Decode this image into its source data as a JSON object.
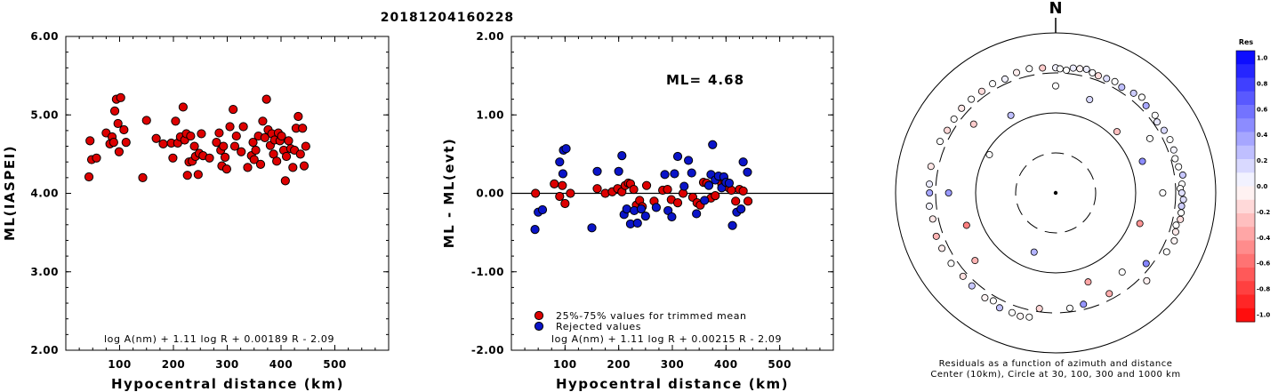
{
  "title": "20181204160228",
  "chart_data": [
    {
      "type": "scatter",
      "id": "ml-vs-distance",
      "ylabel": "ML(IASPEI)",
      "xlabel": "Hypocentral distance (km)",
      "xlim": [
        0,
        600
      ],
      "ylim": [
        2.0,
        6.0
      ],
      "xticks": [
        "100",
        "200",
        "300",
        "400",
        "500"
      ],
      "yticks": [
        "2.00",
        "3.00",
        "4.00",
        "5.00",
        "6.00"
      ],
      "formula": "log A(nm) + 1.11 log R + 0.00189 R - 2.09",
      "series": [
        {
          "color": "#dd0000",
          "points": [
            [
              43,
              4.21
            ],
            [
              45,
              4.67
            ],
            [
              48,
              4.43
            ],
            [
              57,
              4.45
            ],
            [
              75,
              4.77
            ],
            [
              82,
              4.63
            ],
            [
              86,
              4.72
            ],
            [
              89,
              4.65
            ],
            [
              91,
              5.05
            ],
            [
              94,
              5.2
            ],
            [
              97,
              4.89
            ],
            [
              99,
              4.53
            ],
            [
              102,
              5.22
            ],
            [
              108,
              4.81
            ],
            [
              112,
              4.65
            ],
            [
              143,
              4.2
            ],
            [
              150,
              4.93
            ],
            [
              168,
              4.7
            ],
            [
              181,
              4.63
            ],
            [
              196,
              4.64
            ],
            [
              199,
              4.45
            ],
            [
              204,
              4.92
            ],
            [
              208,
              4.64
            ],
            [
              213,
              4.72
            ],
            [
              218,
              5.1
            ],
            [
              221,
              4.68
            ],
            [
              224,
              4.76
            ],
            [
              226,
              4.23
            ],
            [
              229,
              4.4
            ],
            [
              232,
              4.73
            ],
            [
              235,
              4.41
            ],
            [
              239,
              4.6
            ],
            [
              241,
              4.47
            ],
            [
              246,
              4.24
            ],
            [
              248,
              4.51
            ],
            [
              252,
              4.76
            ],
            [
              255,
              4.48
            ],
            [
              267,
              4.45
            ],
            [
              280,
              4.65
            ],
            [
              285,
              4.77
            ],
            [
              288,
              4.55
            ],
            [
              290,
              4.35
            ],
            [
              293,
              4.6
            ],
            [
              296,
              4.46
            ],
            [
              299,
              4.31
            ],
            [
              305,
              4.85
            ],
            [
              311,
              5.07
            ],
            [
              314,
              4.6
            ],
            [
              317,
              4.73
            ],
            [
              326,
              4.53
            ],
            [
              330,
              4.85
            ],
            [
              338,
              4.33
            ],
            [
              345,
              4.48
            ],
            [
              348,
              4.65
            ],
            [
              350,
              4.43
            ],
            [
              353,
              4.55
            ],
            [
              358,
              4.73
            ],
            [
              362,
              4.37
            ],
            [
              366,
              4.92
            ],
            [
              370,
              4.71
            ],
            [
              373,
              5.2
            ],
            [
              376,
              4.81
            ],
            [
              380,
              4.61
            ],
            [
              383,
              4.76
            ],
            [
              386,
              4.5
            ],
            [
              388,
              4.68
            ],
            [
              392,
              4.41
            ],
            [
              395,
              4.77
            ],
            [
              398,
              4.67
            ],
            [
              401,
              4.73
            ],
            [
              405,
              4.55
            ],
            [
              408,
              4.16
            ],
            [
              410,
              4.47
            ],
            [
              414,
              4.67
            ],
            [
              418,
              4.57
            ],
            [
              422,
              4.33
            ],
            [
              425,
              4.55
            ],
            [
              428,
              4.83
            ],
            [
              432,
              4.98
            ],
            [
              436,
              4.5
            ],
            [
              440,
              4.83
            ],
            [
              443,
              4.35
            ],
            [
              446,
              4.6
            ]
          ]
        }
      ]
    },
    {
      "type": "scatter",
      "id": "residual-vs-distance",
      "ylabel": "ML - ML(evt)",
      "xlabel": "Hypocentral distance (km)",
      "xlim": [
        0,
        600
      ],
      "ylim": [
        -2.0,
        2.0
      ],
      "xticks": [
        "100",
        "200",
        "300",
        "400",
        "500"
      ],
      "yticks": [
        "-2.00",
        "-1.00",
        "0.00",
        "1.00",
        "2.00"
      ],
      "ml_label": "ML=",
      "ml_value": "4.68",
      "formula": "log A(nm) + 1.11 log R + 0.00215 R - 2.09",
      "legend": [
        {
          "label": "25%-75% values for trimmed mean",
          "color": "#dd0000"
        },
        {
          "label": "Rejected values",
          "color": "#0a14c8"
        }
      ],
      "series": [
        {
          "name": "25%-75% values for trimmed mean",
          "color": "#dd0000",
          "points": [
            [
              45,
              0.0
            ],
            [
              80,
              0.12
            ],
            [
              90,
              -0.04
            ],
            [
              95,
              0.1
            ],
            [
              100,
              -0.13
            ],
            [
              110,
              0.0
            ],
            [
              160,
              0.06
            ],
            [
              175,
              0.0
            ],
            [
              188,
              0.02
            ],
            [
              198,
              0.06
            ],
            [
              206,
              0.02
            ],
            [
              212,
              0.1
            ],
            [
              218,
              0.13
            ],
            [
              222,
              0.12
            ],
            [
              228,
              0.05
            ],
            [
              233,
              -0.15
            ],
            [
              239,
              -0.09
            ],
            [
              244,
              -0.17
            ],
            [
              252,
              0.1
            ],
            [
              266,
              -0.1
            ],
            [
              282,
              0.04
            ],
            [
              291,
              0.05
            ],
            [
              298,
              -0.08
            ],
            [
              310,
              -0.12
            ],
            [
              320,
              0.0
            ],
            [
              338,
              -0.05
            ],
            [
              346,
              -0.12
            ],
            [
              352,
              -0.15
            ],
            [
              358,
              0.14
            ],
            [
              364,
              0.13
            ],
            [
              372,
              -0.06
            ],
            [
              380,
              -0.03
            ],
            [
              392,
              0.12
            ],
            [
              398,
              0.15
            ],
            [
              405,
              0.07
            ],
            [
              410,
              0.04
            ],
            [
              418,
              -0.1
            ],
            [
              425,
              0.05
            ],
            [
              432,
              0.03
            ],
            [
              441,
              -0.1
            ]
          ]
        },
        {
          "name": "Rejected values",
          "color": "#0a14c8",
          "points": [
            [
              44,
              -0.46
            ],
            [
              50,
              -0.24
            ],
            [
              58,
              -0.21
            ],
            [
              90,
              0.4
            ],
            [
              97,
              0.55
            ],
            [
              102,
              0.57
            ],
            [
              96,
              0.25
            ],
            [
              150,
              -0.44
            ],
            [
              160,
              0.28
            ],
            [
              200,
              0.28
            ],
            [
              206,
              0.48
            ],
            [
              210,
              -0.27
            ],
            [
              215,
              -0.2
            ],
            [
              222,
              -0.39
            ],
            [
              229,
              -0.22
            ],
            [
              235,
              -0.38
            ],
            [
              242,
              -0.2
            ],
            [
              250,
              -0.29
            ],
            [
              270,
              -0.18
            ],
            [
              286,
              0.24
            ],
            [
              292,
              -0.22
            ],
            [
              299,
              -0.3
            ],
            [
              304,
              0.25
            ],
            [
              310,
              0.47
            ],
            [
              322,
              0.09
            ],
            [
              330,
              0.42
            ],
            [
              336,
              0.26
            ],
            [
              345,
              -0.26
            ],
            [
              360,
              -0.09
            ],
            [
              368,
              0.1
            ],
            [
              372,
              0.24
            ],
            [
              375,
              0.62
            ],
            [
              380,
              0.17
            ],
            [
              386,
              0.22
            ],
            [
              392,
              0.07
            ],
            [
              396,
              0.21
            ],
            [
              400,
              0.14
            ],
            [
              406,
              0.13
            ],
            [
              412,
              -0.41
            ],
            [
              420,
              -0.24
            ],
            [
              428,
              -0.2
            ],
            [
              432,
              0.4
            ],
            [
              440,
              0.27
            ]
          ]
        }
      ]
    },
    {
      "type": "polar-scatter",
      "id": "azimuth-residuals",
      "north_label": "N",
      "caption_line1": "Residuals as a function of azimuth and distance",
      "caption_line2": "Center (10km), Circle at 30, 100, 300 and 1000 km",
      "rings_km": [
        30,
        100,
        300,
        1000
      ],
      "colorbar_title": "Res",
      "colorbar_ticks": [
        "1.0",
        "0.8",
        "0.6",
        "0.4",
        "0.2",
        "0.0",
        "-0.2",
        "-0.4",
        "-0.6",
        "-0.8",
        "-1.0"
      ],
      "points_azimuth_distance_residual": [
        [
          0,
          350,
          0.06
        ],
        [
          2,
          340,
          0.0
        ],
        [
          5,
          330,
          0.0
        ],
        [
          8,
          360,
          0.08
        ],
        [
          11,
          365,
          -0.05
        ],
        [
          14,
          375,
          0.07
        ],
        [
          17,
          355,
          0.02
        ],
        [
          20,
          345,
          -0.14
        ],
        [
          24,
          350,
          0.13
        ],
        [
          28,
          360,
          0.0
        ],
        [
          32,
          345,
          0.25
        ],
        [
          38,
          365,
          0.2
        ],
        [
          42,
          390,
          0.0
        ],
        [
          46,
          355,
          0.34
        ],
        [
          52,
          360,
          0.0
        ],
        [
          55,
          335,
          0.09
        ],
        [
          60,
          350,
          0.15
        ],
        [
          65,
          360,
          0.0
        ],
        [
          70,
          355,
          0.04
        ],
        [
          74,
          340,
          0.0
        ],
        [
          78,
          355,
          0.0
        ],
        [
          82,
          385,
          0.22
        ],
        [
          86,
          365,
          0.0
        ],
        [
          88,
          345,
          0.0
        ],
        [
          90,
          360,
          0.12
        ],
        [
          93,
          380,
          0.13
        ],
        [
          96,
          365,
          0.2
        ],
        [
          99,
          370,
          0.0
        ],
        [
          102,
          375,
          -0.12
        ],
        [
          105,
          345,
          0.0
        ],
        [
          108,
          360,
          -0.08
        ],
        [
          112,
          380,
          -0.04
        ],
        [
          118,
          355,
          0.0
        ],
        [
          128,
          260,
          0.48
        ],
        [
          134,
          365,
          -0.06
        ],
        [
          152,
          255,
          -0.32
        ],
        [
          166,
          260,
          0.41
        ],
        [
          173,
          270,
          0.0
        ],
        [
          188,
          275,
          -0.16
        ],
        [
          192,
          370,
          0.0
        ],
        [
          196,
          385,
          -0.03
        ],
        [
          200,
          375,
          0.0
        ],
        [
          206,
          380,
          0.24
        ],
        [
          210,
          345,
          0.0
        ],
        [
          214,
          365,
          -0.05
        ],
        [
          222,
          350,
          0.21
        ],
        [
          228,
          345,
          -0.12
        ],
        [
          236,
          360,
          0.0
        ],
        [
          244,
          365,
          -0.07
        ],
        [
          250,
          370,
          -0.3
        ],
        [
          258,
          355,
          -0.09
        ],
        [
          264,
          370,
          0.05
        ],
        [
          270,
          360,
          0.35
        ],
        [
          274,
          365,
          0.08
        ],
        [
          282,
          375,
          -0.1
        ],
        [
          294,
          365,
          0.0
        ],
        [
          300,
          350,
          -0.15
        ],
        [
          306,
          355,
          0.0
        ],
        [
          312,
          365,
          -0.1
        ],
        [
          318,
          360,
          0.0
        ],
        [
          324,
          355,
          -0.14
        ],
        [
          330,
          360,
          0.0
        ],
        [
          336,
          345,
          0.06
        ],
        [
          342,
          365,
          -0.07
        ],
        [
          348,
          370,
          0.0
        ],
        [
          354,
          355,
          -0.2
        ],
        [
          110,
          130,
          -0.42
        ],
        [
          200,
          60,
          0.3
        ],
        [
          300,
          90,
          0.0
        ],
        [
          45,
          120,
          -0.25
        ],
        [
          70,
          140,
          0.45
        ],
        [
          250,
          150,
          -0.5
        ],
        [
          160,
          150,
          -0.35
        ],
        [
          330,
          130,
          0.25
        ],
        [
          20,
          170,
          0.15
        ],
        [
          90,
          210,
          0.0
        ],
        [
          270,
          210,
          0.4
        ],
        [
          230,
          200,
          -0.3
        ],
        [
          140,
          190,
          0.0
        ],
        [
          0,
          210,
          0.0
        ],
        [
          310,
          210,
          -0.2
        ],
        [
          60,
          220,
          0.0
        ]
      ]
    }
  ]
}
